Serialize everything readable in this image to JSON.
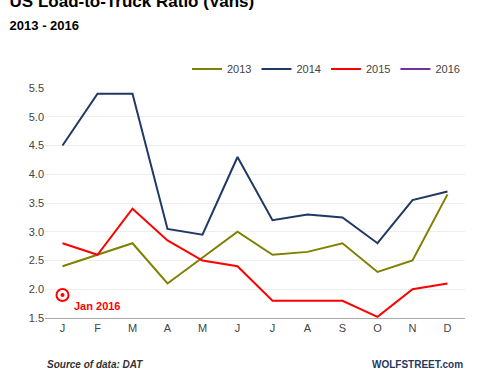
{
  "chart_data": {
    "type": "line",
    "title": "US Load-to-Truck Ratio (Vans)",
    "subtitle": "2013 - 2016",
    "categories": [
      "J",
      "F",
      "M",
      "A",
      "M",
      "J",
      "J",
      "A",
      "S",
      "O",
      "N",
      "D"
    ],
    "series": [
      {
        "name": "2013",
        "color": "#808000",
        "values": [
          2.4,
          2.6,
          2.8,
          2.1,
          2.55,
          3.0,
          2.6,
          2.65,
          2.8,
          2.3,
          2.5,
          3.65
        ]
      },
      {
        "name": "2014",
        "color": "#1f3864",
        "values": [
          4.5,
          5.4,
          5.4,
          3.05,
          2.95,
          4.3,
          3.2,
          3.3,
          3.25,
          2.8,
          3.55,
          3.7
        ]
      },
      {
        "name": "2015",
        "color": "#ff0000",
        "values": [
          2.8,
          2.6,
          3.4,
          2.85,
          2.5,
          2.4,
          1.8,
          1.8,
          1.8,
          1.52,
          2.0,
          2.1
        ]
      },
      {
        "name": "2016",
        "color": "#7030a0",
        "values": [
          1.9,
          null,
          null,
          null,
          null,
          null,
          null,
          null,
          null,
          null,
          null,
          null
        ]
      }
    ],
    "annotations": [
      {
        "text": "Jan 2016",
        "x": 0,
        "y": 1.9,
        "color": "#ff0000",
        "marker": "circle"
      },
      {
        "text": "Source of data: DAT"
      },
      {
        "text": "WOLFSTREET.com",
        "color": "#1f3864"
      }
    ],
    "ylim": [
      1.5,
      5.5
    ],
    "yticks": [
      1.5,
      {
        "value": 2.0,
        "label": "2.0"
      },
      2.5,
      {
        "value": 3.0,
        "label": "3.0"
      },
      3.5,
      {
        "value": 4.0,
        "label": "4.0"
      },
      4.5,
      {
        "value": 5.0,
        "label": "5.0"
      },
      5.5
    ],
    "grid": true,
    "legend": "upper right"
  }
}
